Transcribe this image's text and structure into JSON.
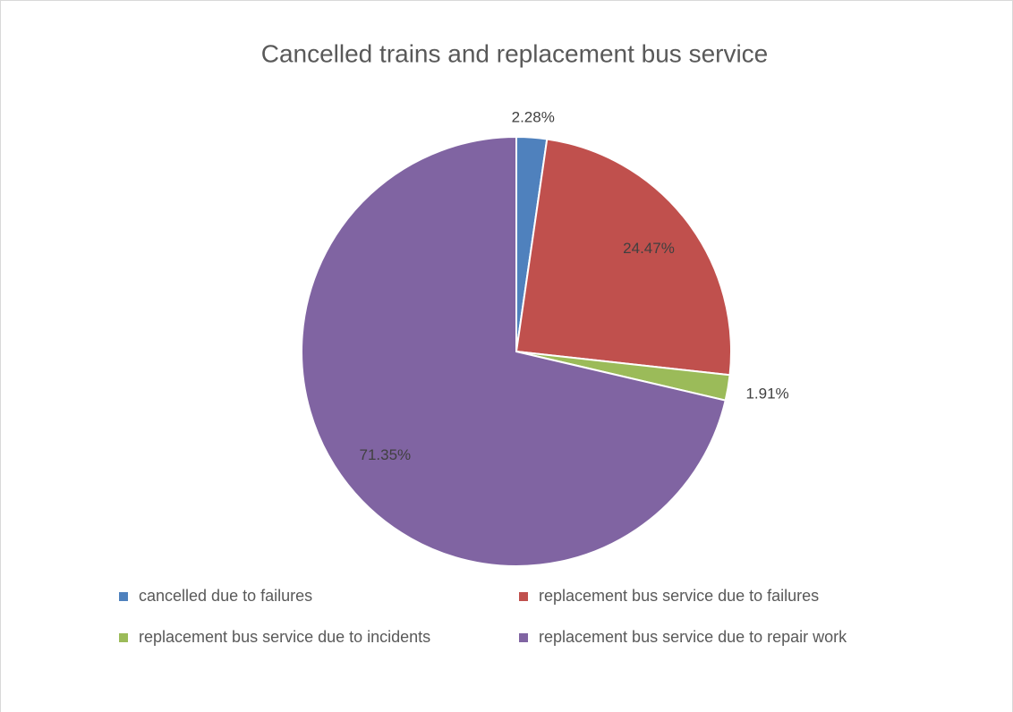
{
  "chart_data": {
    "type": "pie",
    "title": "Cancelled trains and replacement bus service",
    "categories": [
      "cancelled due to failures",
      "replacement bus service due to failures",
      "replacement bus service due to incidents",
      "replacement bus service due to repair work"
    ],
    "values": [
      2.28,
      24.47,
      1.91,
      71.35
    ],
    "value_labels": [
      "2.28%",
      "24.47%",
      "1.91%",
      "71.35%"
    ],
    "colors": [
      "#4f81bd",
      "#c0504d",
      "#9bbb59",
      "#8064a2"
    ],
    "legend": "bottom"
  }
}
